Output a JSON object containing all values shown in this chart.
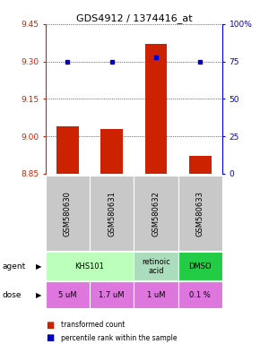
{
  "title": "GDS4912 / 1374416_at",
  "samples": [
    "GSM580630",
    "GSM580631",
    "GSM580632",
    "GSM580633"
  ],
  "bar_values": [
    9.04,
    9.03,
    9.37,
    8.92
  ],
  "percentile_ranks": [
    75,
    75,
    78,
    75
  ],
  "ylim_left": [
    8.85,
    9.45
  ],
  "ylim_right": [
    0,
    100
  ],
  "yticks_left": [
    8.85,
    9.0,
    9.15,
    9.3,
    9.45
  ],
  "yticks_right": [
    0,
    25,
    50,
    75,
    100
  ],
  "bar_color": "#cc2200",
  "dot_color": "#0000cc",
  "dose_labels": [
    "5 uM",
    "1.7 uM",
    "1 uM",
    "0.1 %"
  ],
  "dose_color": "#dd77dd",
  "sample_bg_color": "#c8c8c8",
  "legend_bar_label": "transformed count",
  "legend_dot_label": "percentile rank within the sample",
  "agent_spans": [
    [
      0,
      2,
      "KHS101",
      "#bbffbb"
    ],
    [
      2,
      3,
      "retinoic\nacid",
      "#aaddbb"
    ],
    [
      3,
      4,
      "DMSO",
      "#22cc44"
    ]
  ]
}
